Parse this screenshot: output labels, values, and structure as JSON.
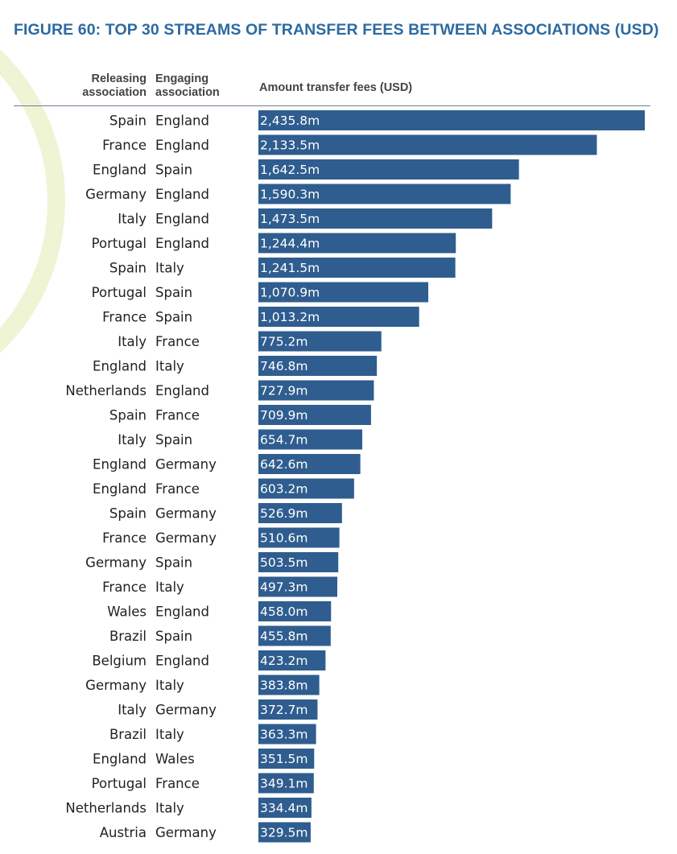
{
  "figure": {
    "title": "FIGURE 60: TOP 30 STREAMS OF TRANSFER FEES BETWEEN ASSOCIATIONS (USD)",
    "header": {
      "releasing_line1": "Releasing",
      "releasing_line2": "association",
      "engaging_line1": "Engaging",
      "engaging_line2": "association",
      "amount": "Amount transfer fees (USD)"
    },
    "colors": {
      "bar": "#2f5d8f",
      "title": "#2d6aa1",
      "decor": "#eef4d4"
    }
  },
  "chart_data": {
    "type": "bar",
    "orientation": "horizontal",
    "title": "FIGURE 60: TOP 30 STREAMS OF TRANSFER FEES BETWEEN ASSOCIATIONS (USD)",
    "xlabel": "Amount transfer fees (USD)",
    "unit": "USD million",
    "xlim": [
      0,
      2435.8
    ],
    "grid": false,
    "rows": [
      {
        "releasing": "Spain",
        "engaging": "England",
        "value": 2435.8,
        "label": "2,435.8m"
      },
      {
        "releasing": "France",
        "engaging": "England",
        "value": 2133.5,
        "label": "2,133.5m"
      },
      {
        "releasing": "England",
        "engaging": "Spain",
        "value": 1642.5,
        "label": "1,642.5m"
      },
      {
        "releasing": "Germany",
        "engaging": "England",
        "value": 1590.3,
        "label": "1,590.3m"
      },
      {
        "releasing": "Italy",
        "engaging": "England",
        "value": 1473.5,
        "label": "1,473.5m"
      },
      {
        "releasing": "Portugal",
        "engaging": "England",
        "value": 1244.4,
        "label": "1,244.4m"
      },
      {
        "releasing": "Spain",
        "engaging": "Italy",
        "value": 1241.5,
        "label": "1,241.5m"
      },
      {
        "releasing": "Portugal",
        "engaging": "Spain",
        "value": 1070.9,
        "label": "1,070.9m"
      },
      {
        "releasing": "France",
        "engaging": "Spain",
        "value": 1013.2,
        "label": "1,013.2m"
      },
      {
        "releasing": "Italy",
        "engaging": "France",
        "value": 775.2,
        "label": "775.2m"
      },
      {
        "releasing": "England",
        "engaging": "Italy",
        "value": 746.8,
        "label": "746.8m"
      },
      {
        "releasing": "Netherlands",
        "engaging": "England",
        "value": 727.9,
        "label": "727.9m"
      },
      {
        "releasing": "Spain",
        "engaging": "France",
        "value": 709.9,
        "label": "709.9m"
      },
      {
        "releasing": "Italy",
        "engaging": "Spain",
        "value": 654.7,
        "label": "654.7m"
      },
      {
        "releasing": "England",
        "engaging": "Germany",
        "value": 642.6,
        "label": "642.6m"
      },
      {
        "releasing": "England",
        "engaging": "France",
        "value": 603.2,
        "label": "603.2m"
      },
      {
        "releasing": "Spain",
        "engaging": "Germany",
        "value": 526.9,
        "label": "526.9m"
      },
      {
        "releasing": "France",
        "engaging": "Germany",
        "value": 510.6,
        "label": "510.6m"
      },
      {
        "releasing": "Germany",
        "engaging": "Spain",
        "value": 503.5,
        "label": "503.5m"
      },
      {
        "releasing": "France",
        "engaging": "Italy",
        "value": 497.3,
        "label": "497.3m"
      },
      {
        "releasing": "Wales",
        "engaging": "England",
        "value": 458.0,
        "label": "458.0m"
      },
      {
        "releasing": "Brazil",
        "engaging": "Spain",
        "value": 455.8,
        "label": "455.8m"
      },
      {
        "releasing": "Belgium",
        "engaging": "England",
        "value": 423.2,
        "label": "423.2m"
      },
      {
        "releasing": "Germany",
        "engaging": "Italy",
        "value": 383.8,
        "label": "383.8m"
      },
      {
        "releasing": "Italy",
        "engaging": "Germany",
        "value": 372.7,
        "label": "372.7m"
      },
      {
        "releasing": "Brazil",
        "engaging": "Italy",
        "value": 363.3,
        "label": "363.3m"
      },
      {
        "releasing": "England",
        "engaging": "Wales",
        "value": 351.5,
        "label": "351.5m"
      },
      {
        "releasing": "Portugal",
        "engaging": "France",
        "value": 349.1,
        "label": "349.1m"
      },
      {
        "releasing": "Netherlands",
        "engaging": "Italy",
        "value": 334.4,
        "label": "334.4m"
      },
      {
        "releasing": "Austria",
        "engaging": "Germany",
        "value": 329.5,
        "label": "329.5m"
      }
    ]
  }
}
